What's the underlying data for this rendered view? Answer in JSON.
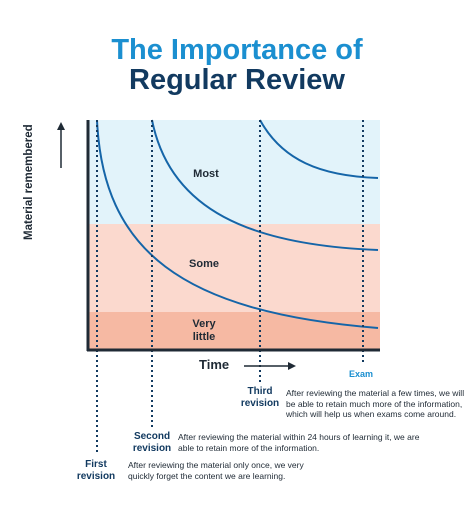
{
  "header": {
    "title_line1": "The Importance of",
    "title_line2": "Regular Review"
  },
  "axes": {
    "y_label": "Material remembered",
    "x_label": "Time",
    "exam_label": "Exam"
  },
  "zones": {
    "most": "Most",
    "some": "Some",
    "very_little_line1": "Very",
    "very_little_line2": "little"
  },
  "revisions": {
    "third": {
      "line1": "Third",
      "line2": "revision",
      "description": "After reviewing the material a few times, we will be able to retain much more of the information, which will help us when exams come around."
    },
    "second": {
      "line1": "Second",
      "line2": "revision",
      "description": "After reviewing the material within 24 hours of learning it, we are able to retain more of the information."
    },
    "first": {
      "line1": "First",
      "line2": "revision",
      "description": "After reviewing the material only once, we very quickly forget the content we are learning."
    }
  },
  "colors": {
    "title_blue": "#1b8fd0",
    "title_navy": "#123a60",
    "zone_most": "#e2f3fa",
    "zone_some": "#fbd9ce",
    "zone_very_little": "#f6b9a3",
    "curve": "#1565a8"
  }
}
